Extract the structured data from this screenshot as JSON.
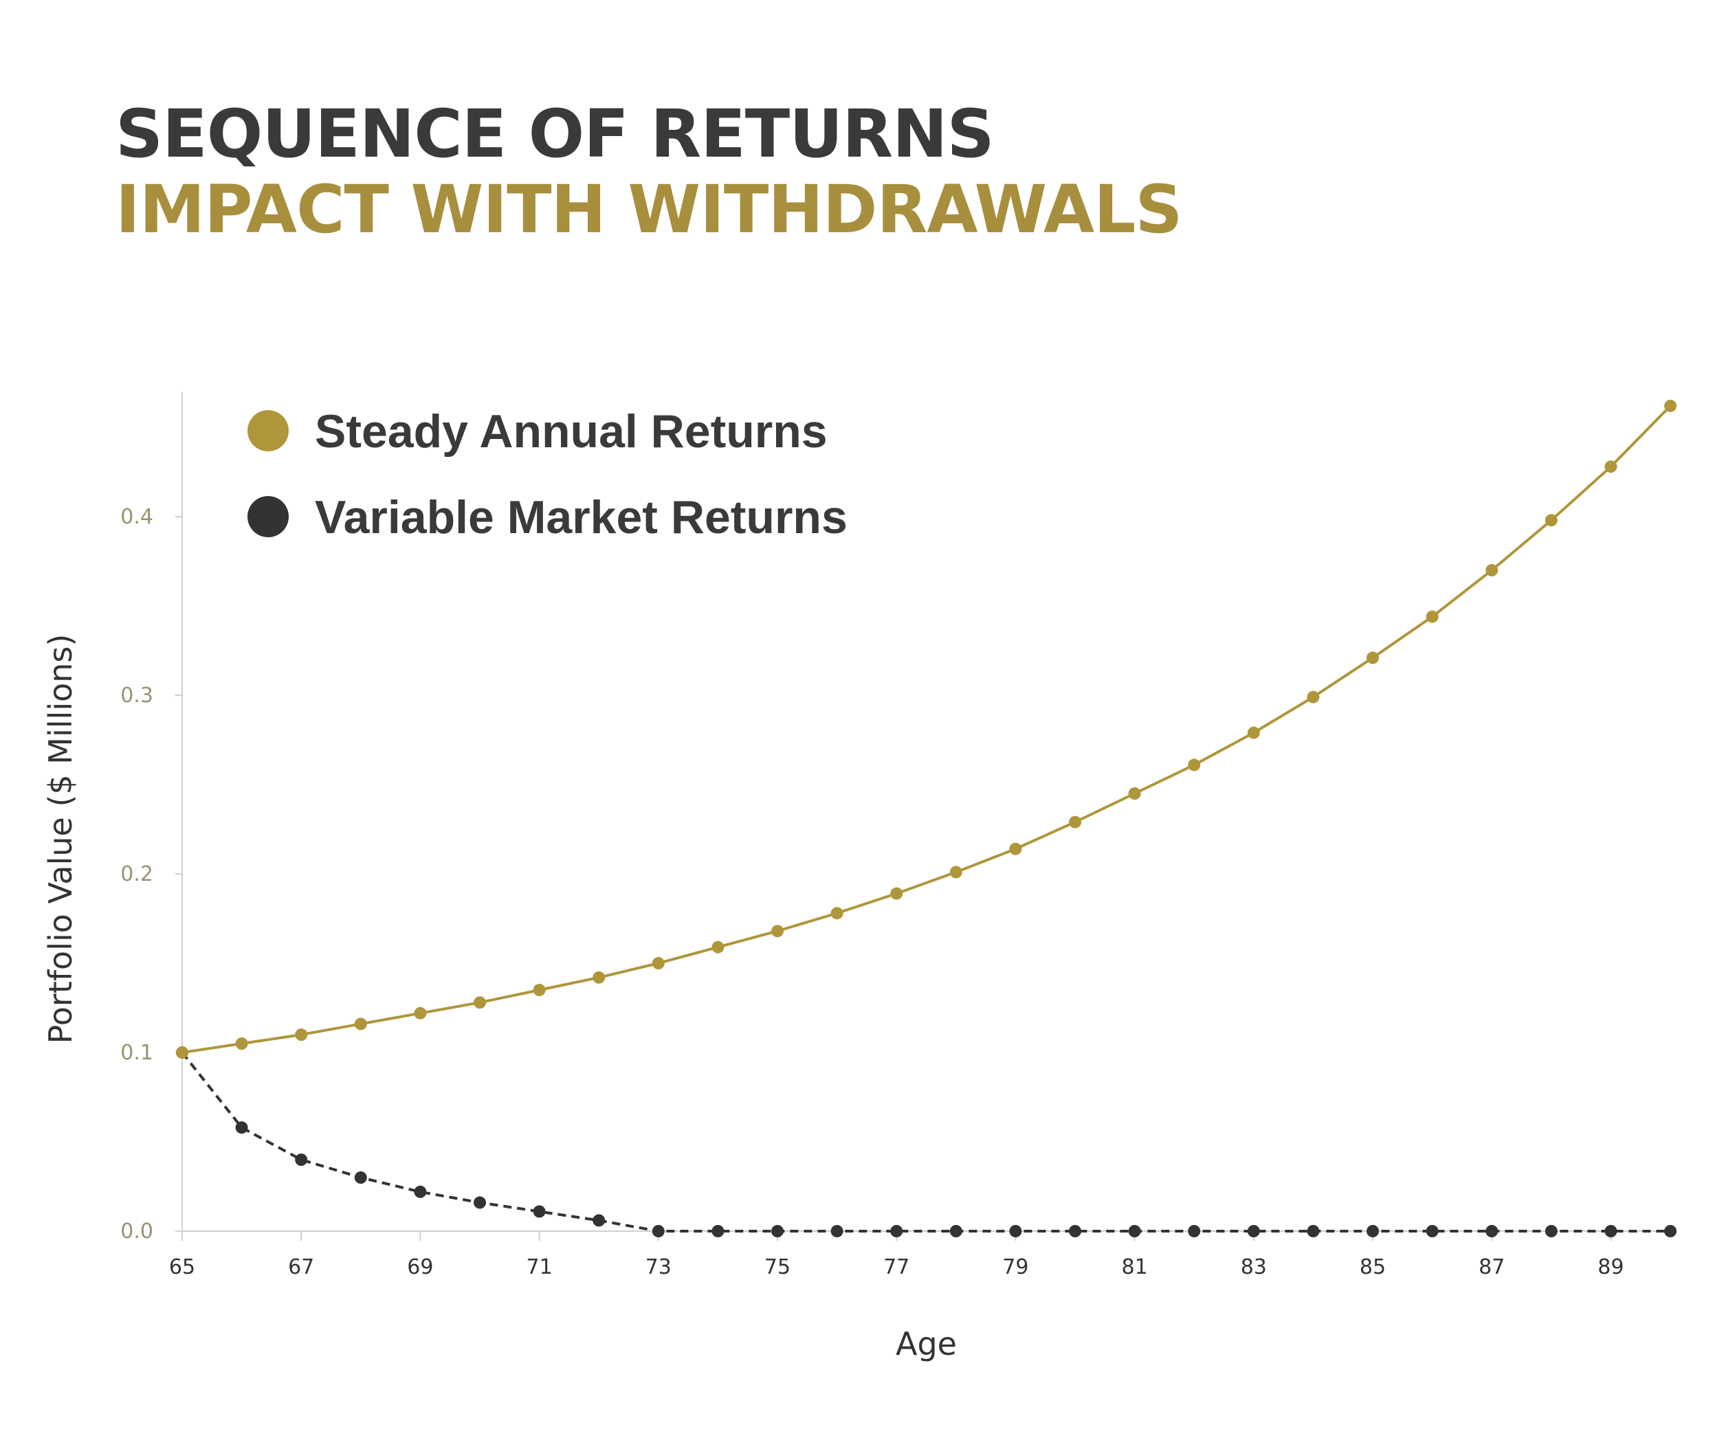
{
  "header": {
    "title": "SEQUENCE OF RETURNS",
    "subtitle": "IMPACT WITH WITHDRAWALS"
  },
  "colors": {
    "title": "#3a3a3a",
    "subtitle": "#a88f3e",
    "steady": "#b0963a",
    "variable": "#333333",
    "y_tick": "#9a9270",
    "x_tick": "#333333",
    "axis": "#cfcfcf"
  },
  "chart_data": {
    "type": "line",
    "xlabel": "Age",
    "ylabel": "Portfolio Value ($ Millions)",
    "x": [
      65,
      66,
      67,
      68,
      69,
      70,
      71,
      72,
      73,
      74,
      75,
      76,
      77,
      78,
      79,
      80,
      81,
      82,
      83,
      84,
      85,
      86,
      87,
      88,
      89,
      90
    ],
    "xticks": [
      "65",
      "67",
      "69",
      "71",
      "73",
      "75",
      "77",
      "79",
      "81",
      "83",
      "85",
      "87",
      "89"
    ],
    "yticks": [
      "0.0",
      "0.1",
      "0.2",
      "0.3",
      "0.4"
    ],
    "xlim": [
      65,
      90
    ],
    "ylim": [
      0,
      0.47
    ],
    "grid": false,
    "legend_position": "top-left",
    "series": [
      {
        "name": "Steady Annual Returns",
        "line_style": "solid",
        "values": [
          0.1,
          0.105,
          0.11,
          0.116,
          0.122,
          0.128,
          0.135,
          0.142,
          0.15,
          0.159,
          0.168,
          0.178,
          0.189,
          0.201,
          0.214,
          0.229,
          0.245,
          0.261,
          0.279,
          0.299,
          0.321,
          0.344,
          0.37,
          0.398,
          0.428,
          0.462
        ]
      },
      {
        "name": "Variable Market Returns",
        "line_style": "dashed",
        "values": [
          0.1,
          0.058,
          0.04,
          0.03,
          0.022,
          0.016,
          0.011,
          0.006,
          0.0,
          0.0,
          0.0,
          0.0,
          0.0,
          0.0,
          0.0,
          0.0,
          0.0,
          0.0,
          0.0,
          0.0,
          0.0,
          0.0,
          0.0,
          0.0,
          0.0,
          0.0
        ]
      }
    ]
  }
}
